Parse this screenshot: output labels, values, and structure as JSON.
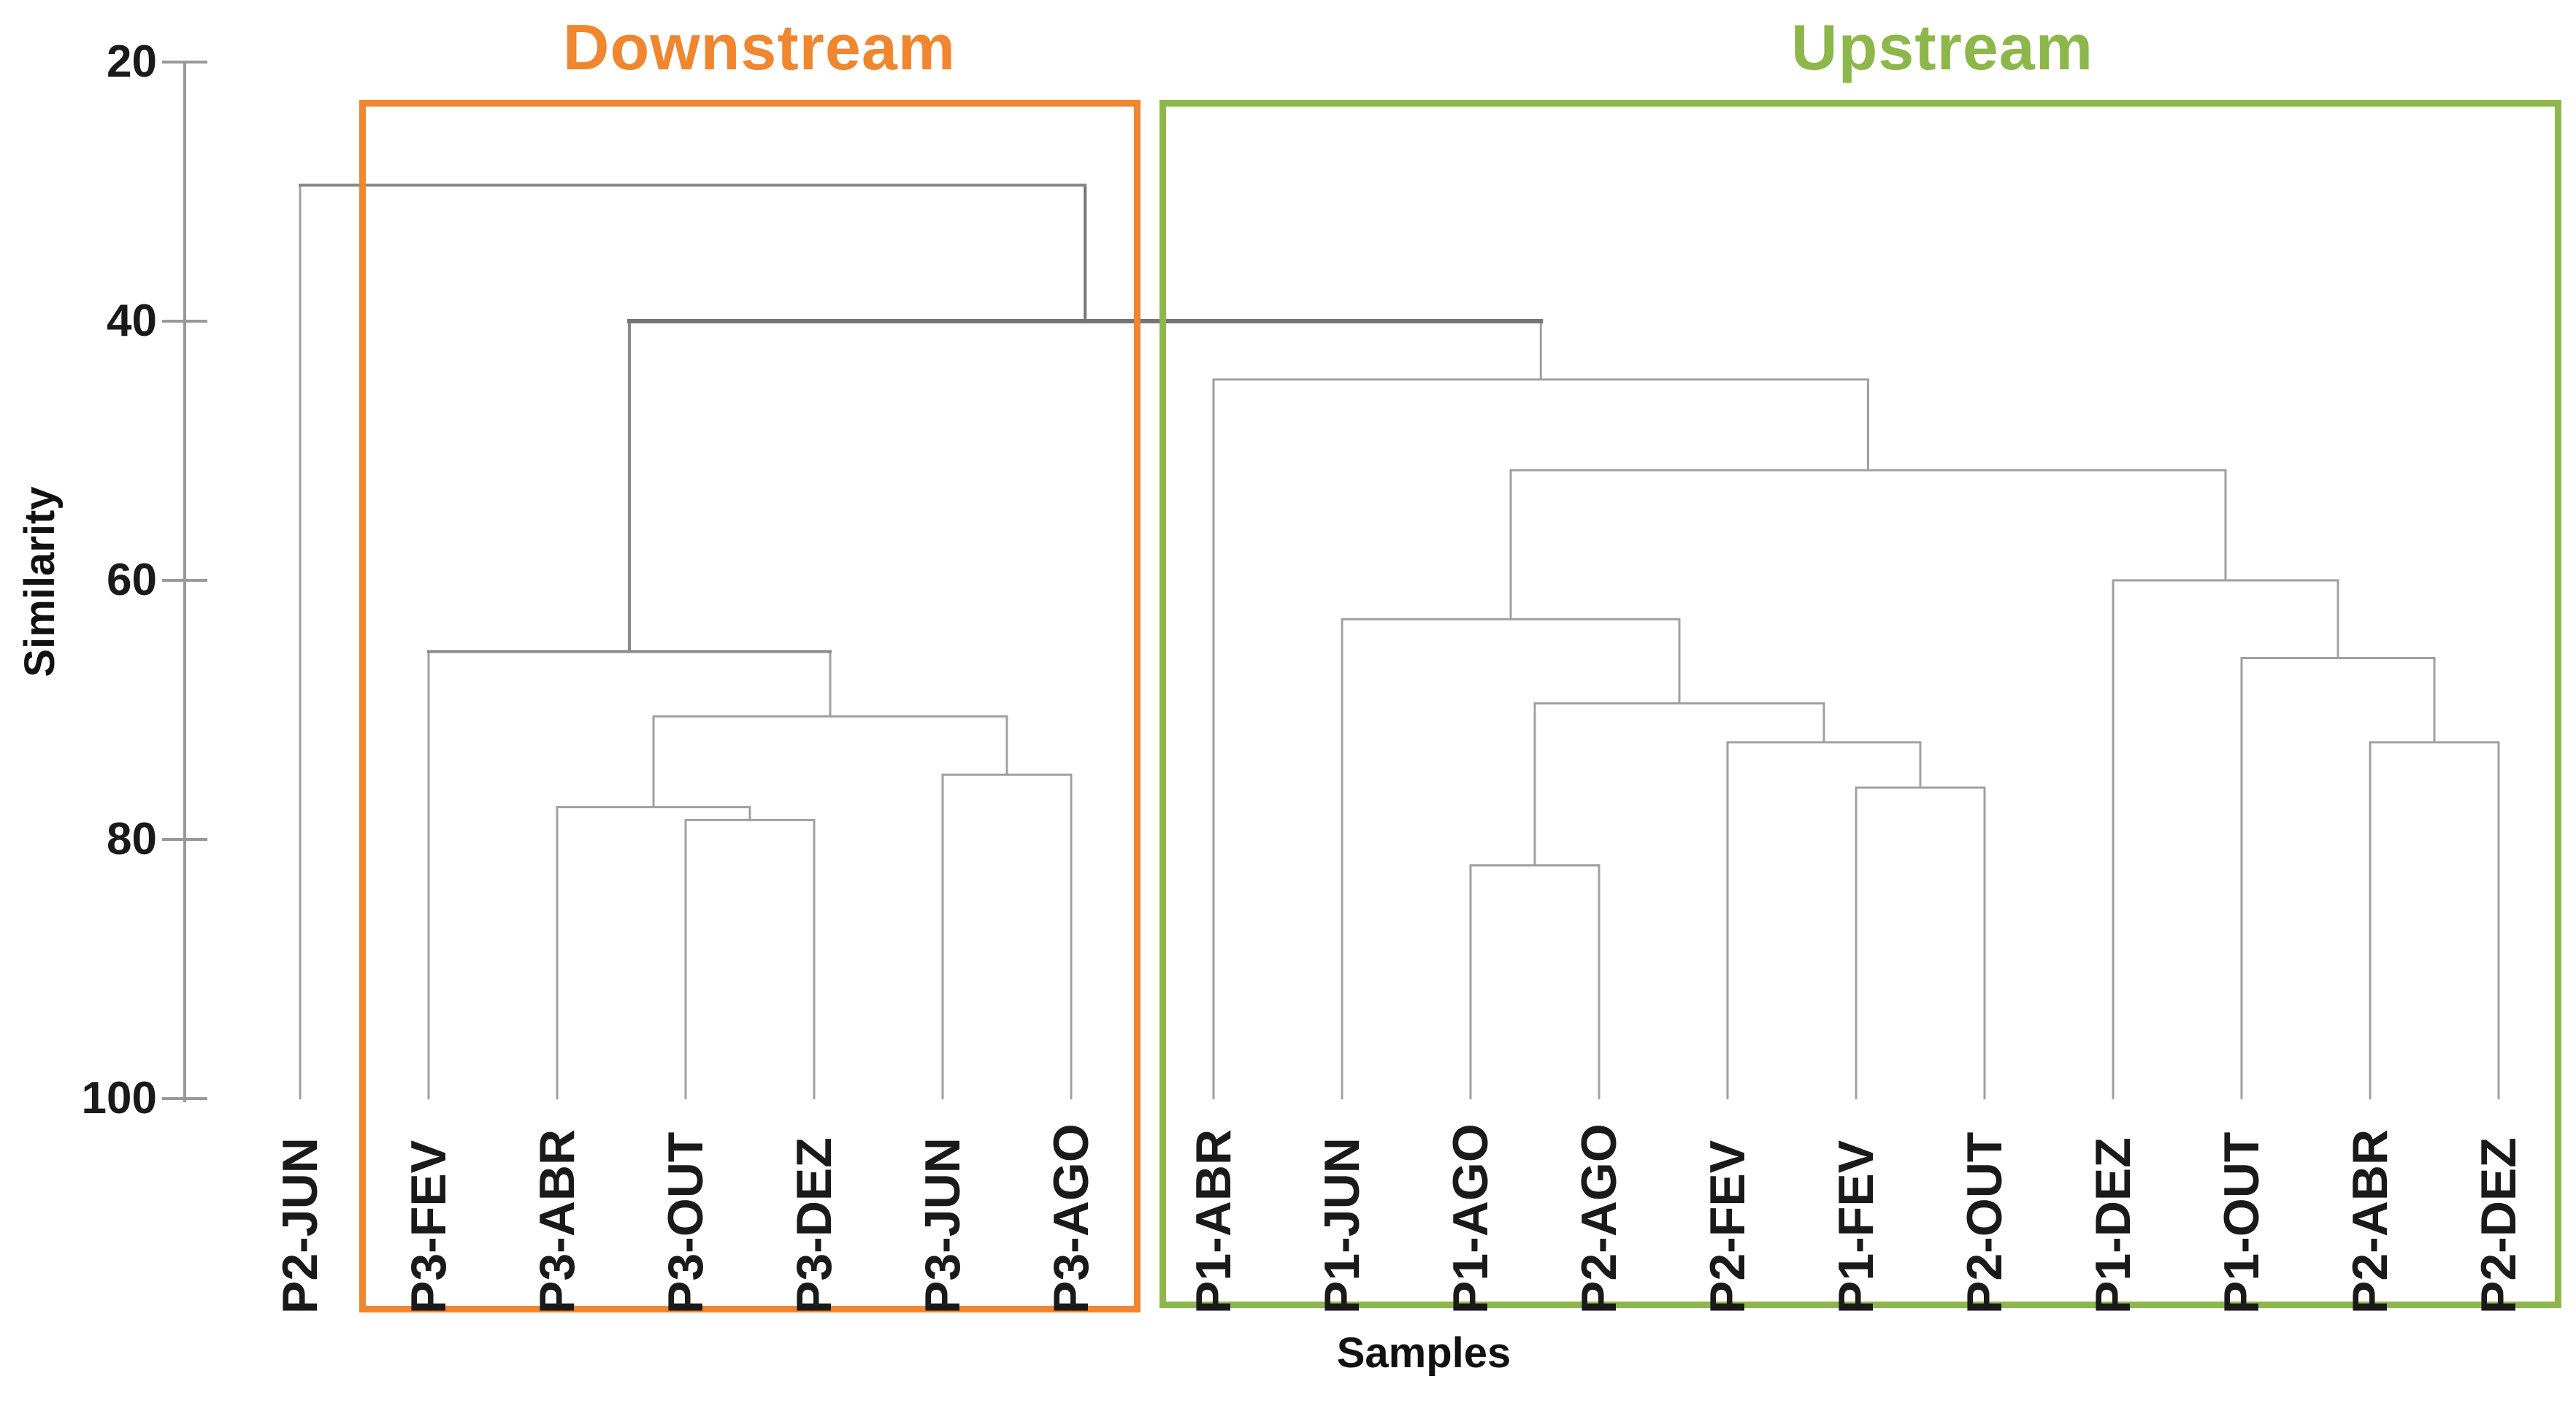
{
  "chart_data": {
    "type": "dendrogram",
    "title": "",
    "ylabel": "Similarity",
    "xlabel": "Samples",
    "y_axis": {
      "min": 20,
      "max": 100,
      "ticks": [
        20,
        40,
        60,
        80,
        100
      ],
      "direction": "increasing-downward"
    },
    "leaves": [
      "P2-JUN",
      "P3-FEV",
      "P3-ABR",
      "P3-OUT",
      "P3-DEZ",
      "P3-JUN",
      "P3-AGO",
      "P1-ABR",
      "P1-JUN",
      "P1-AGO",
      "P2-AGO",
      "P2-FEV",
      "P1-FEV",
      "P2-OUT",
      "P1-DEZ",
      "P1-OUT",
      "P2-ABR",
      "P2-DEZ"
    ],
    "tree": {
      "h": 29.5,
      "emph": "med",
      "children": [
        {
          "leaf": "P2-JUN"
        },
        {
          "h": 40,
          "emph": "high",
          "children": [
            {
              "h": 65.5,
              "emph": "med",
              "children": [
                {
                  "leaf": "P3-FEV"
                },
                {
                  "h": 70.5,
                  "children": [
                    {
                      "h": 77.5,
                      "children": [
                        {
                          "leaf": "P3-ABR"
                        },
                        {
                          "h": 78.5,
                          "children": [
                            {
                              "leaf": "P3-OUT"
                            },
                            {
                              "leaf": "P3-DEZ"
                            }
                          ]
                        }
                      ]
                    },
                    {
                      "h": 75,
                      "children": [
                        {
                          "leaf": "P3-JUN"
                        },
                        {
                          "leaf": "P3-AGO"
                        }
                      ]
                    }
                  ]
                }
              ]
            },
            {
              "h": 44.5,
              "children": [
                {
                  "leaf": "P1-ABR"
                },
                {
                  "h": 51.5,
                  "children": [
                    {
                      "h": 63,
                      "children": [
                        {
                          "leaf": "P1-JUN"
                        },
                        {
                          "h": 69.5,
                          "children": [
                            {
                              "h": 82,
                              "children": [
                                {
                                  "leaf": "P1-AGO"
                                },
                                {
                                  "leaf": "P2-AGO"
                                }
                              ]
                            },
                            {
                              "h": 72.5,
                              "children": [
                                {
                                  "leaf": "P2-FEV"
                                },
                                {
                                  "h": 76,
                                  "children": [
                                    {
                                      "leaf": "P1-FEV"
                                    },
                                    {
                                      "leaf": "P2-OUT"
                                    }
                                  ]
                                }
                              ]
                            }
                          ]
                        }
                      ]
                    },
                    {
                      "h": 60,
                      "children": [
                        {
                          "leaf": "P1-DEZ"
                        },
                        {
                          "h": 66,
                          "children": [
                            {
                              "leaf": "P1-OUT"
                            },
                            {
                              "h": 72.5,
                              "children": [
                                {
                                  "leaf": "P2-ABR"
                                },
                                {
                                  "leaf": "P2-DEZ"
                                }
                              ]
                            }
                          ]
                        }
                      ]
                    }
                  ]
                }
              ]
            }
          ]
        }
      ]
    },
    "groups": [
      {
        "label": "Downstream",
        "color": "#F0862F",
        "from": "P3-FEV",
        "to": "P3-AGO"
      },
      {
        "label": "Upstream",
        "color": "#8DB74A",
        "from": "P1-ABR",
        "to": "P2-DEZ"
      }
    ],
    "line_color": "#A0A0A0",
    "axis_color": "#999999",
    "legend": "none",
    "grid": false
  }
}
